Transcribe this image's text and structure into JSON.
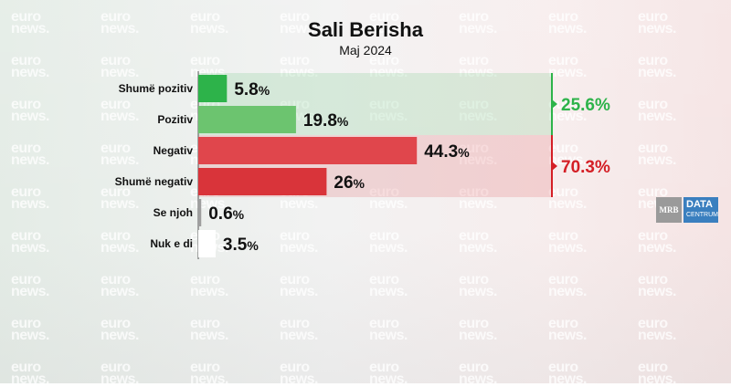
{
  "chart_data": {
    "type": "bar",
    "title": "Sali Berisha",
    "subtitle": "Maj 2024",
    "categories": [
      "Shumë pozitiv",
      "Pozitiv",
      "Negativ",
      "Shumë negativ",
      "Se njoh",
      "Nuk e di"
    ],
    "values": [
      5.8,
      19.8,
      44.3,
      26,
      0.6,
      3.5
    ],
    "value_labels": [
      "5.8%",
      "19.8%",
      "44.3%",
      "26%",
      "0.6%",
      "3.5%"
    ],
    "bar_colors": [
      "#2db34a",
      "#6cc46f",
      "#e0464c",
      "#d9343a",
      "#9e9e9e",
      "#ffffff"
    ],
    "groups": [
      {
        "label": "25.6%",
        "value": 25.6,
        "color": "#2db34a",
        "from": 0,
        "to": 1
      },
      {
        "label": "70.3%",
        "value": 70.3,
        "color": "#d41f26",
        "from": 2,
        "to": 3
      }
    ],
    "xlim": [
      0,
      100
    ]
  },
  "branding": {
    "watermark": "euro news.",
    "logo_left": "MRB",
    "logo_right_top": "DATA",
    "logo_right_bottom": "CENTRUM"
  }
}
